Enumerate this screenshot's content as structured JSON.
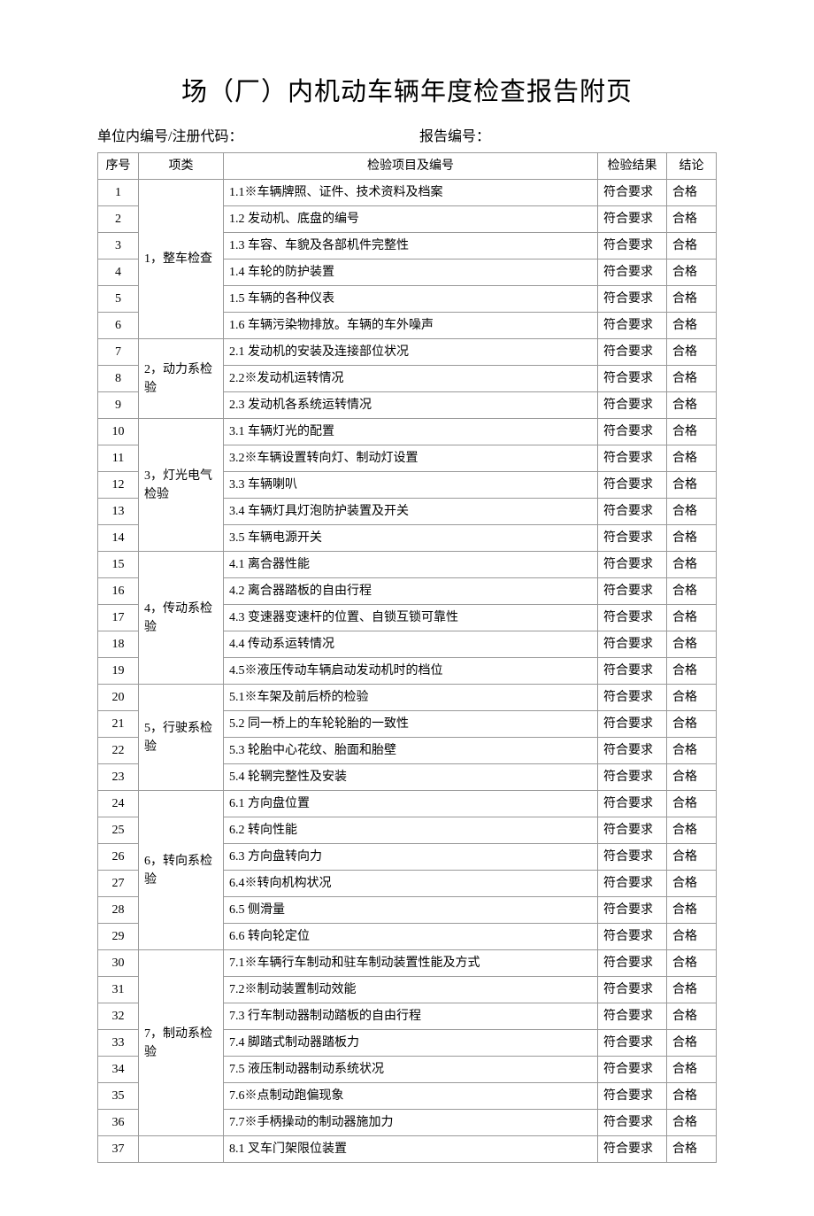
{
  "title": "场（厂）内机动车辆年度检查报告附页",
  "header": {
    "left_label": "单位内编号/注册代码：",
    "right_label": "报告编号："
  },
  "columns": {
    "seq": "序号",
    "category": "项类",
    "item": "检验项目及编号",
    "result": "检验结果",
    "conclusion": "结论"
  },
  "categories": [
    {
      "id": "c1",
      "label": "1，整车检查"
    },
    {
      "id": "c2",
      "label": "2，动力系检验"
    },
    {
      "id": "c3",
      "label": "3，灯光电气检验"
    },
    {
      "id": "c4",
      "label": "4，传动系检验"
    },
    {
      "id": "c5",
      "label": "5，行驶系检验"
    },
    {
      "id": "c6",
      "label": "6，转向系检验"
    },
    {
      "id": "c7",
      "label": "7，制动系检验"
    },
    {
      "id": "c8",
      "label": ""
    }
  ],
  "rows": [
    {
      "seq": "1",
      "cat": "c1",
      "item": "1.1※车辆牌照、证件、技术资料及档案",
      "result": "符合要求",
      "conclusion": "合格"
    },
    {
      "seq": "2",
      "cat": "c1",
      "item": "1.2 发动机、底盘的编号",
      "result": "符合要求",
      "conclusion": "合格"
    },
    {
      "seq": "3",
      "cat": "c1",
      "item": "1.3 车容、车貌及各部机件完整性",
      "result": "符合要求",
      "conclusion": "合格"
    },
    {
      "seq": "4",
      "cat": "c1",
      "item": "1.4 车轮的防护装置",
      "result": "符合要求",
      "conclusion": "合格"
    },
    {
      "seq": "5",
      "cat": "c1",
      "item": "1.5 车辆的各种仪表",
      "result": "符合要求",
      "conclusion": "合格"
    },
    {
      "seq": "6",
      "cat": "c1",
      "item": "1.6 车辆污染物排放。车辆的车外噪声",
      "result": "符合要求",
      "conclusion": "合格"
    },
    {
      "seq": "7",
      "cat": "c2",
      "item": "2.1 发动机的安装及连接部位状况",
      "result": "符合要求",
      "conclusion": "合格"
    },
    {
      "seq": "8",
      "cat": "c2",
      "item": "2.2※发动机运转情况",
      "result": "符合要求",
      "conclusion": "合格"
    },
    {
      "seq": "9",
      "cat": "c2",
      "item": "2.3 发动机各系统运转情况",
      "result": "符合要求",
      "conclusion": "合格"
    },
    {
      "seq": "10",
      "cat": "c3",
      "item": "3.1 车辆灯光的配置",
      "result": "符合要求",
      "conclusion": "合格"
    },
    {
      "seq": "11",
      "cat": "c3",
      "item": "3.2※车辆设置转向灯、制动灯设置",
      "result": "符合要求",
      "conclusion": "合格"
    },
    {
      "seq": "12",
      "cat": "c3",
      "item": "3.3 车辆喇叭",
      "result": "符合要求",
      "conclusion": "合格"
    },
    {
      "seq": "13",
      "cat": "c3",
      "item": "3.4 车辆灯具灯泡防护装置及开关",
      "result": "符合要求",
      "conclusion": "合格"
    },
    {
      "seq": "14",
      "cat": "c3",
      "item": "3.5 车辆电源开关",
      "result": "符合要求",
      "conclusion": "合格"
    },
    {
      "seq": "15",
      "cat": "c4",
      "item": "4.1 离合器性能",
      "result": "符合要求",
      "conclusion": "合格"
    },
    {
      "seq": "16",
      "cat": "c4",
      "item": "4.2 离合器踏板的自由行程",
      "result": "符合要求",
      "conclusion": "合格"
    },
    {
      "seq": "17",
      "cat": "c4",
      "item": "4.3 变速器变速杆的位置、自锁互锁可靠性",
      "result": "符合要求",
      "conclusion": "合格"
    },
    {
      "seq": "18",
      "cat": "c4",
      "item": "4.4 传动系运转情况",
      "result": "符合要求",
      "conclusion": "合格"
    },
    {
      "seq": "19",
      "cat": "c4",
      "item": "4.5※液压传动车辆启动发动机时的档位",
      "result": "符合要求",
      "conclusion": "合格"
    },
    {
      "seq": "20",
      "cat": "c5",
      "item": "5.1※车架及前后桥的检验",
      "result": "符合要求",
      "conclusion": "合格"
    },
    {
      "seq": "21",
      "cat": "c5",
      "item": "5.2 同一桥上的车轮轮胎的一致性",
      "result": "符合要求",
      "conclusion": "合格"
    },
    {
      "seq": "22",
      "cat": "c5",
      "item": "5.3 轮胎中心花纹、胎面和胎壁",
      "result": "符合要求",
      "conclusion": "合格"
    },
    {
      "seq": "23",
      "cat": "c5",
      "item": "5.4 轮辋完整性及安装",
      "result": "符合要求",
      "conclusion": "合格"
    },
    {
      "seq": "24",
      "cat": "c6",
      "item": "6.1 方向盘位置",
      "result": "符合要求",
      "conclusion": "合格"
    },
    {
      "seq": "25",
      "cat": "c6",
      "item": "6.2 转向性能",
      "result": "符合要求",
      "conclusion": "合格"
    },
    {
      "seq": "26",
      "cat": "c6",
      "item": "6.3 方向盘转向力",
      "result": "符合要求",
      "conclusion": "合格"
    },
    {
      "seq": "27",
      "cat": "c6",
      "item": "6.4※转向机构状况",
      "result": "符合要求",
      "conclusion": "合格"
    },
    {
      "seq": "28",
      "cat": "c6",
      "item": "6.5 侧滑量",
      "result": "符合要求",
      "conclusion": "合格"
    },
    {
      "seq": "29",
      "cat": "c6",
      "item": "6.6 转向轮定位",
      "result": "符合要求",
      "conclusion": "合格"
    },
    {
      "seq": "30",
      "cat": "c7",
      "item": "7.1※车辆行车制动和驻车制动装置性能及方式",
      "result": "符合要求",
      "conclusion": "合格"
    },
    {
      "seq": "31",
      "cat": "c7",
      "item": "7.2※制动装置制动效能",
      "result": "符合要求",
      "conclusion": "合格"
    },
    {
      "seq": "32",
      "cat": "c7",
      "item": "7.3 行车制动器制动踏板的自由行程",
      "result": "符合要求",
      "conclusion": "合格"
    },
    {
      "seq": "33",
      "cat": "c7",
      "item": "7.4 脚踏式制动器踏板力",
      "result": "符合要求",
      "conclusion": "合格"
    },
    {
      "seq": "34",
      "cat": "c7",
      "item": "7.5 液压制动器制动系统状况",
      "result": "符合要求",
      "conclusion": "合格"
    },
    {
      "seq": "35",
      "cat": "c7",
      "item": "7.6※点制动跑偏现象",
      "result": "符合要求",
      "conclusion": "合格"
    },
    {
      "seq": "36",
      "cat": "c7",
      "item": "7.7※手柄操动的制动器施加力",
      "result": "符合要求",
      "conclusion": "合格"
    },
    {
      "seq": "37",
      "cat": "c8",
      "item": "8.1 叉车门架限位装置",
      "result": "符合要求",
      "conclusion": "合格"
    }
  ]
}
